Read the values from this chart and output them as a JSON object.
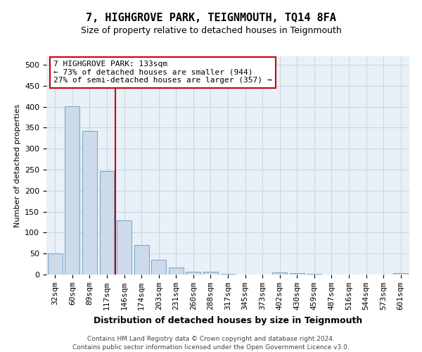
{
  "title": "7, HIGHGROVE PARK, TEIGNMOUTH, TQ14 8FA",
  "subtitle": "Size of property relative to detached houses in Teignmouth",
  "xlabel": "Distribution of detached houses by size in Teignmouth",
  "ylabel": "Number of detached properties",
  "footer_line1": "Contains HM Land Registry data © Crown copyright and database right 2024.",
  "footer_line2": "Contains public sector information licensed under the Open Government Licence v3.0.",
  "bar_labels": [
    "32sqm",
    "60sqm",
    "89sqm",
    "117sqm",
    "146sqm",
    "174sqm",
    "203sqm",
    "231sqm",
    "260sqm",
    "288sqm",
    "317sqm",
    "345sqm",
    "373sqm",
    "402sqm",
    "430sqm",
    "459sqm",
    "487sqm",
    "516sqm",
    "544sqm",
    "573sqm",
    "601sqm"
  ],
  "bar_values": [
    51,
    401,
    342,
    246,
    130,
    70,
    36,
    17,
    6,
    6,
    1,
    0,
    0,
    5,
    4,
    1,
    0,
    0,
    0,
    0,
    3
  ],
  "bar_color": "#ccdaea",
  "bar_edge_color": "#6699bb",
  "grid_color": "#c8d4e0",
  "background_color": "#e8f0f8",
  "vline_x": 3.5,
  "vline_color": "#cc0000",
  "annotation_line1": "7 HIGHGROVE PARK: 133sqm",
  "annotation_line2": "← 73% of detached houses are smaller (944)",
  "annotation_line3": "27% of semi-detached houses are larger (357) →",
  "ylim": [
    0,
    520
  ],
  "yticks": [
    0,
    50,
    100,
    150,
    200,
    250,
    300,
    350,
    400,
    450,
    500
  ],
  "title_fontsize": 11,
  "subtitle_fontsize": 9,
  "xlabel_fontsize": 9,
  "ylabel_fontsize": 8,
  "tick_fontsize": 8,
  "annot_fontsize": 8,
  "footer_fontsize": 6.5
}
